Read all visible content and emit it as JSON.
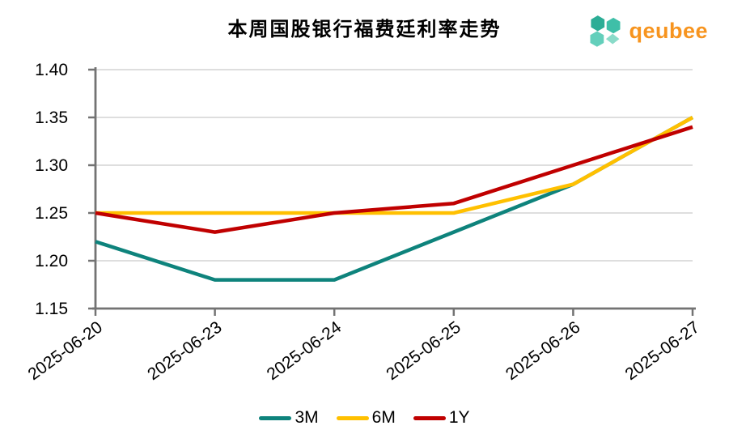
{
  "header": {
    "title": "本周国股银行福费廷利率走势",
    "logo": {
      "text": "qeubee",
      "text_color": "#F7941E",
      "icon": "qeubee-cubes-icon",
      "icon_colors": [
        "#2CAD96",
        "#3FBFA8",
        "#63CFBB",
        "#8ADBC9"
      ]
    }
  },
  "chart_data": {
    "type": "line",
    "title": "本周国股银行福费廷利率走势",
    "categories": [
      "2025-06-20",
      "2025-06-23",
      "2025-06-24",
      "2025-06-25",
      "2025-06-26",
      "2025-06-27"
    ],
    "series": [
      {
        "name": "3M",
        "color": "#0E837C",
        "values": [
          1.22,
          1.18,
          1.18,
          1.23,
          1.28,
          1.35
        ]
      },
      {
        "name": "6M",
        "color": "#FFC000",
        "values": [
          1.25,
          1.25,
          1.25,
          1.25,
          1.28,
          1.35
        ]
      },
      {
        "name": "1Y",
        "color": "#C00000",
        "values": [
          1.25,
          1.23,
          1.25,
          1.26,
          1.3,
          1.34
        ]
      }
    ],
    "xlabel": "",
    "ylabel": "",
    "ylim": [
      1.15,
      1.4
    ],
    "ytick_step": 0.05,
    "ytick_labels": [
      "1.15",
      "1.20",
      "1.25",
      "1.30",
      "1.35",
      "1.40"
    ],
    "grid": "horizontal",
    "legend_position": "bottom",
    "x_label_rotation_deg": -36,
    "colors": {
      "axis": "#737373",
      "grid": "#DADADA",
      "text": "#000000"
    }
  }
}
